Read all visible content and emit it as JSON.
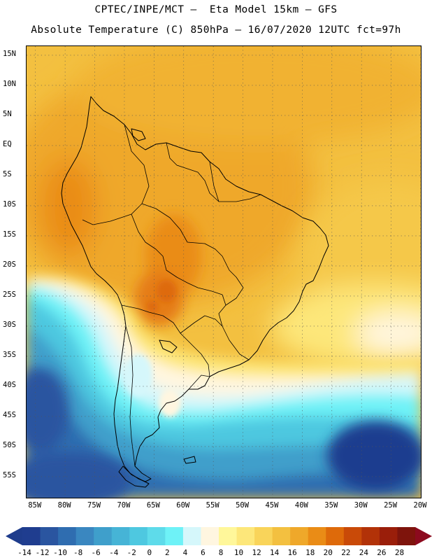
{
  "title": {
    "line1": "CPTEC/INPE/MCT –  Eta Model 15km – GFS",
    "line2": "Absolute Temperature (C) 850hPa – 16/07/2020 12UTC fct=97h"
  },
  "map": {
    "region": "South America",
    "variable": "Absolute Temperature (C)",
    "level": "850hPa",
    "lat_range": [
      -58.5,
      16.5
    ],
    "lon_range": [
      -86.5,
      -20
    ],
    "lat_labels": [
      {
        "text": "15N",
        "lat": 15
      },
      {
        "text": "10N",
        "lat": 10
      },
      {
        "text": "5N",
        "lat": 5
      },
      {
        "text": "EQ",
        "lat": 0
      },
      {
        "text": "5S",
        "lat": -5
      },
      {
        "text": "10S",
        "lat": -10
      },
      {
        "text": "15S",
        "lat": -15
      },
      {
        "text": "20S",
        "lat": -20
      },
      {
        "text": "25S",
        "lat": -25
      },
      {
        "text": "30S",
        "lat": -30
      },
      {
        "text": "35S",
        "lat": -35
      },
      {
        "text": "40S",
        "lat": -40
      },
      {
        "text": "45S",
        "lat": -45
      },
      {
        "text": "50S",
        "lat": -50
      },
      {
        "text": "55S",
        "lat": -55
      }
    ],
    "lon_labels": [
      {
        "text": "85W",
        "lon": -85
      },
      {
        "text": "80W",
        "lon": -80
      },
      {
        "text": "75W",
        "lon": -75
      },
      {
        "text": "70W",
        "lon": -70
      },
      {
        "text": "65W",
        "lon": -65
      },
      {
        "text": "60W",
        "lon": -60
      },
      {
        "text": "55W",
        "lon": -55
      },
      {
        "text": "50W",
        "lon": -50
      },
      {
        "text": "45W",
        "lon": -45
      },
      {
        "text": "40W",
        "lon": -40
      },
      {
        "text": "35W",
        "lon": -35
      },
      {
        "text": "30W",
        "lon": -30
      },
      {
        "text": "25W",
        "lon": -25
      },
      {
        "text": "20W",
        "lon": -20
      }
    ]
  },
  "colorbar": {
    "labels": [
      "-14",
      "-12",
      "-10",
      "-8",
      "-6",
      "-4",
      "-2",
      "0",
      "2",
      "4",
      "6",
      "8",
      "10",
      "12",
      "14",
      "16",
      "18",
      "20",
      "22",
      "24",
      "26",
      "28"
    ],
    "min_color": "#1e3c8c",
    "max_color": "#8c0a1e",
    "colors": [
      "#1f3d8f",
      "#2a55a0",
      "#2f6db0",
      "#3a87c0",
      "#3f9fcb",
      "#46b4d6",
      "#4ec8e0",
      "#5edbea",
      "#6ef2f7",
      "#d5f7fb",
      "#fff6e0",
      "#fff79a",
      "#fde77a",
      "#f9d45a",
      "#f3c040",
      "#efa82a",
      "#ea8c16",
      "#de6a0a",
      "#c94a08",
      "#b23208",
      "#9a1e0a",
      "#7e140c"
    ]
  }
}
